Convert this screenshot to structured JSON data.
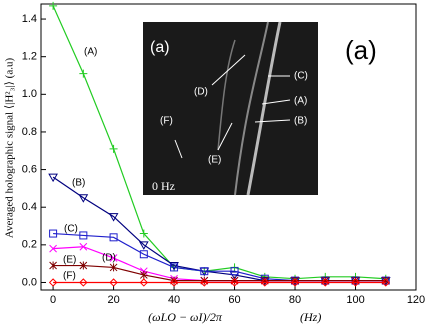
{
  "chart_data": {
    "type": "line",
    "ylabel": "Averaged holographic signal ⟨|H²₃|⟩  (a.u)",
    "xlabel": "(ωLO − ωI)/2π",
    "xunit": "(Hz)",
    "panel_label": "(a)",
    "inset": {
      "label": "(a)",
      "markers": [
        "(D)",
        "(C)",
        "(A)",
        "(B)",
        "(E)",
        "(F)"
      ],
      "caption": "0 Hz"
    },
    "x": [
      0,
      10,
      20,
      30,
      40,
      50,
      60,
      70,
      80,
      90,
      100,
      110
    ],
    "series": [
      {
        "name": "(A)",
        "color": "#22cc22",
        "marker": "plus",
        "values": [
          1.47,
          1.11,
          0.71,
          0.26,
          0.08,
          0.06,
          0.08,
          0.03,
          0.02,
          0.03,
          0.03,
          0.02
        ]
      },
      {
        "name": "(B)",
        "color": "#00007f",
        "marker": "triangle",
        "values": [
          0.56,
          0.45,
          0.35,
          0.2,
          0.09,
          0.06,
          0.04,
          0.01,
          0.01,
          0.01,
          0.01,
          0.01
        ]
      },
      {
        "name": "(C)",
        "color": "#1f1fcc",
        "marker": "square",
        "values": [
          0.26,
          0.25,
          0.24,
          0.15,
          0.08,
          0.06,
          0.06,
          0.02,
          0.01,
          0.01,
          0.01,
          0.01
        ]
      },
      {
        "name": "(D)",
        "color": "#ff00ff",
        "marker": "x",
        "values": [
          0.18,
          0.19,
          0.13,
          0.06,
          0.02,
          0.01,
          0.01,
          0.01,
          0.01,
          0.01,
          0.01,
          0.01
        ]
      },
      {
        "name": "(E)",
        "color": "#7f0000",
        "marker": "asterisk",
        "values": [
          0.09,
          0.09,
          0.08,
          0.04,
          0.01,
          0.01,
          0.01,
          0.01,
          0.01,
          0.01,
          0.01,
          0.01
        ]
      },
      {
        "name": "(F)",
        "color": "#ff0000",
        "marker": "diamond",
        "values": [
          0,
          0,
          0,
          0,
          0,
          0,
          0,
          0,
          0,
          0,
          0,
          0
        ]
      }
    ],
    "xlim": [
      -4,
      120
    ],
    "xticks": [
      0,
      20,
      40,
      60,
      80,
      100,
      120
    ],
    "ylim": [
      -0.04,
      1.48
    ],
    "yticks": [
      {
        "value": 0,
        "label": "0.0"
      },
      0.2,
      0.4,
      0.6,
      0.8,
      {
        "value": 1,
        "label": "1.0"
      },
      1.2,
      1.4
    ]
  }
}
